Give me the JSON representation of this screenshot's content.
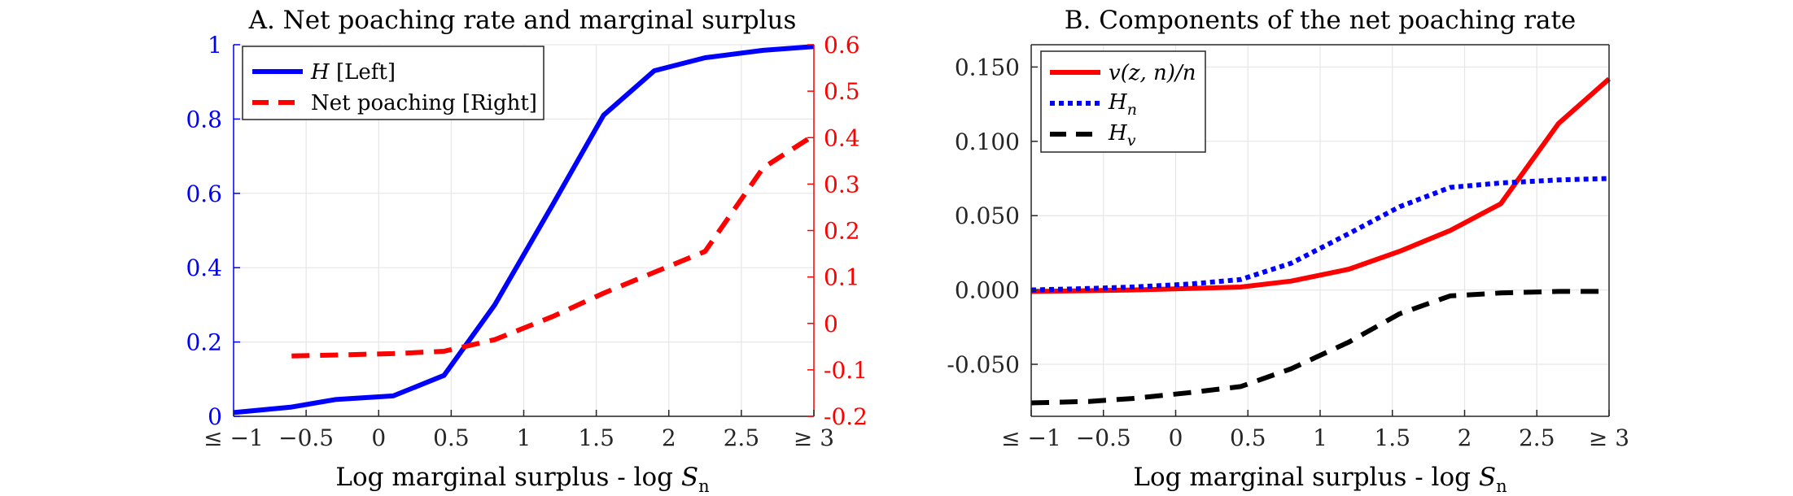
{
  "chart_data": [
    {
      "type": "line",
      "title": "A. Net poaching rate and marginal surplus",
      "xlabel": "Log marginal surplus - log S",
      "xlabel_subscript": "n",
      "xlim": [
        -1,
        3
      ],
      "xticks": [
        "≤ −1",
        "−0.5",
        "0",
        "0.5",
        "1",
        "1.5",
        "2",
        "2.5",
        "≥ 3"
      ],
      "ylim_left": [
        0,
        1
      ],
      "yticks_left": [
        "0",
        "0.2",
        "0.4",
        "0.6",
        "0.8",
        "1"
      ],
      "ylim_right": [
        -0.2,
        0.6
      ],
      "yticks_right": [
        "-0.2",
        "-0.1",
        "0",
        "0.1",
        "0.2",
        "0.3",
        "0.4",
        "0.5",
        "0.6"
      ],
      "grid": true,
      "legend_placement": "top-left",
      "series": [
        {
          "name": "H [Left]",
          "name_italic": "H",
          "name_rest": " [Left]",
          "axis": "left",
          "color": "#0000ff",
          "style": "solid",
          "x": [
            -1.0,
            -0.6,
            -0.3,
            0.1,
            0.45,
            0.8,
            1.2,
            1.55,
            1.9,
            2.25,
            2.65,
            3.0
          ],
          "y": [
            0.01,
            0.025,
            0.045,
            0.055,
            0.11,
            0.3,
            0.57,
            0.81,
            0.93,
            0.965,
            0.985,
            0.995
          ]
        },
        {
          "name": "Net poaching [Right]",
          "axis": "right",
          "color": "#ff0000",
          "style": "dashed",
          "x": [
            -0.6,
            -0.3,
            0.1,
            0.45,
            0.8,
            1.2,
            1.55,
            1.9,
            2.25,
            2.65,
            3.0
          ],
          "y": [
            -0.07,
            -0.068,
            -0.065,
            -0.06,
            -0.035,
            0.015,
            0.065,
            0.11,
            0.155,
            0.335,
            0.405
          ]
        }
      ]
    },
    {
      "type": "line",
      "title": "B. Components of the net poaching rate",
      "xlabel": "Log marginal surplus - log S",
      "xlabel_subscript": "n",
      "xlim": [
        -1,
        3
      ],
      "xticks": [
        "≤ −1",
        "−0.5",
        "0",
        "0.5",
        "1",
        "1.5",
        "2",
        "2.5",
        "≥ 3"
      ],
      "ylim": [
        -0.085,
        0.165
      ],
      "yticks": [
        "-0.050",
        "0.000",
        "0.050",
        "0.100",
        "0.150"
      ],
      "grid": true,
      "legend_placement": "top-left",
      "series": [
        {
          "name": "v(z, n)/n",
          "color": "#ff0000",
          "style": "solid",
          "x": [
            -1.0,
            -0.6,
            -0.3,
            0.1,
            0.45,
            0.8,
            1.2,
            1.55,
            1.9,
            2.25,
            2.65,
            3.0
          ],
          "y": [
            -0.001,
            -0.0005,
            0.0,
            0.001,
            0.002,
            0.006,
            0.014,
            0.026,
            0.04,
            0.058,
            0.112,
            0.142
          ]
        },
        {
          "name": "H_n",
          "name_base": "H",
          "name_sub": "n",
          "color": "#0000ff",
          "style": "dotted",
          "x": [
            -1.0,
            -0.6,
            -0.3,
            0.1,
            0.45,
            0.8,
            1.2,
            1.55,
            1.9,
            2.25,
            2.65,
            3.0
          ],
          "y": [
            0.0,
            0.001,
            0.002,
            0.004,
            0.007,
            0.018,
            0.038,
            0.056,
            0.069,
            0.072,
            0.074,
            0.075
          ]
        },
        {
          "name": "H_v",
          "name_base": "H",
          "name_sub": "v",
          "color": "#000000",
          "style": "dashed",
          "x": [
            -1.0,
            -0.6,
            -0.3,
            0.1,
            0.45,
            0.8,
            1.2,
            1.55,
            1.9,
            2.25,
            2.65,
            3.0
          ],
          "y": [
            -0.076,
            -0.075,
            -0.073,
            -0.069,
            -0.065,
            -0.053,
            -0.035,
            -0.016,
            -0.004,
            -0.002,
            -0.001,
            -0.001
          ]
        }
      ]
    }
  ]
}
